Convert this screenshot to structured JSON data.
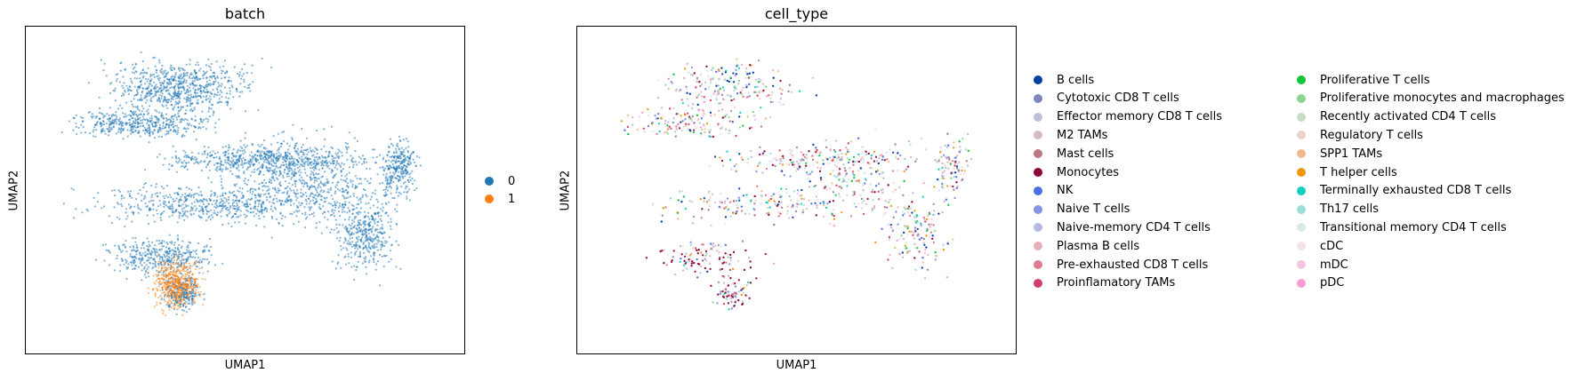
{
  "chart_data": [
    {
      "type": "scatter",
      "title": "batch",
      "xlabel": "UMAP1",
      "ylabel": "UMAP2",
      "grid": false,
      "legend": "right",
      "series": [
        {
          "name": "0",
          "color": "#1f77b4"
        },
        {
          "name": "1",
          "color": "#ff7f0e"
        }
      ]
    },
    {
      "type": "scatter",
      "title": "cell_type",
      "xlabel": "UMAP1",
      "ylabel": "UMAP2",
      "grid": false,
      "legend": "right",
      "series": [
        {
          "name": "B cells",
          "color": "#023fa5"
        },
        {
          "name": "Cytotoxic CD8 T cells",
          "color": "#7d87b9"
        },
        {
          "name": "Effector memory CD8 T cells",
          "color": "#bec1d4"
        },
        {
          "name": "M2 TAMs",
          "color": "#d6bcc0"
        },
        {
          "name": "Mast cells",
          "color": "#bb7784"
        },
        {
          "name": "Monocytes",
          "color": "#8e063b"
        },
        {
          "name": "NK",
          "color": "#4a6fe3"
        },
        {
          "name": "Naive T cells",
          "color": "#8595e1"
        },
        {
          "name": "Naive-memory CD4 T cells",
          "color": "#b5bbe3"
        },
        {
          "name": "Plasma B cells",
          "color": "#e6afb9"
        },
        {
          "name": "Pre-exhausted CD8 T cells",
          "color": "#e07b91"
        },
        {
          "name": "Proinflamatory TAMs",
          "color": "#d33f6a"
        },
        {
          "name": "Proliferative T cells",
          "color": "#11c638"
        },
        {
          "name": "Proliferative monocytes and macrophages",
          "color": "#8dd593"
        },
        {
          "name": "Recently activated CD4 T cells",
          "color": "#c6dec7"
        },
        {
          "name": "Regulatory T cells",
          "color": "#ead3c6"
        },
        {
          "name": "SPP1 TAMs",
          "color": "#f0b98d"
        },
        {
          "name": "T helper cells",
          "color": "#ef9708"
        },
        {
          "name": "Terminally exhausted CD8 T cells",
          "color": "#0fcfc0"
        },
        {
          "name": "Th17 cells",
          "color": "#9cded6"
        },
        {
          "name": "Transitional memory CD4 T cells",
          "color": "#d5eae7"
        },
        {
          "name": "cDC",
          "color": "#f3e1eb"
        },
        {
          "name": "mDC",
          "color": "#f6c4e1"
        },
        {
          "name": "pDC",
          "color": "#f79cd4"
        }
      ]
    }
  ]
}
